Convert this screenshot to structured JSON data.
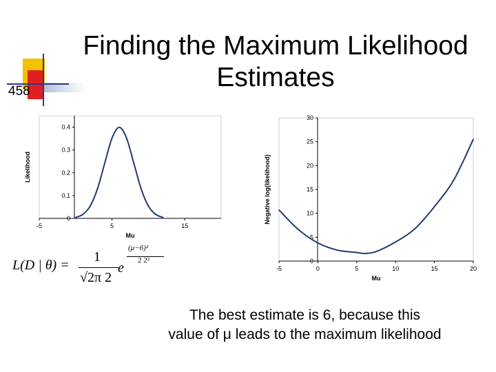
{
  "slide": {
    "number": "458",
    "title_line1": "Finding the Maximum Likelihood",
    "title_line2": "Estimates",
    "caption_line1": "The best estimate is 6, because this",
    "caption_line2": "value of μ leads to the maximum likelihood"
  },
  "formula": {
    "lhs": "L(D | θ) = ",
    "numerator": "1",
    "denominator": "√2π 2",
    "base": "e",
    "exp_numerator": "(μ−6)²",
    "exp_denominator": "2 2²"
  },
  "colors": {
    "curve": "#1f3a6e",
    "grid": "#cfcfcf",
    "title_deco_yellow": "#f2c200",
    "title_deco_red": "#e02020"
  },
  "chart_data": [
    {
      "type": "line",
      "title": "",
      "xlabel": "Mu",
      "ylabel": "Likelihood",
      "xlim": [
        -5,
        20
      ],
      "ylim": [
        0,
        0.45
      ],
      "x_ticks": [
        "-5",
        "5",
        "15"
      ],
      "y_ticks": [
        "0",
        "0.1",
        "0.2",
        "0.3",
        "0.4"
      ],
      "x_tick_values": [
        -5,
        5,
        15
      ],
      "y_tick_values": [
        0,
        0.1,
        0.2,
        0.3,
        0.4
      ],
      "x": [
        0,
        1,
        2,
        3,
        4,
        5,
        6,
        7,
        8,
        9,
        10,
        11,
        12
      ],
      "y": [
        0.0044,
        0.0175,
        0.054,
        0.1295,
        0.242,
        0.352,
        0.399,
        0.352,
        0.242,
        0.1295,
        0.054,
        0.0175,
        0.0044
      ]
    },
    {
      "type": "line",
      "title": "",
      "xlabel": "Mu",
      "ylabel": "Negative log(likelihood)",
      "xlim": [
        -5,
        20
      ],
      "ylim": [
        0,
        30
      ],
      "x_ticks": [
        "-5",
        "0",
        "5",
        "10",
        "15",
        "20"
      ],
      "y_ticks": [
        "0",
        "5",
        "10",
        "15",
        "20",
        "25",
        "30"
      ],
      "x_tick_values": [
        -5,
        0,
        5,
        10,
        15,
        20
      ],
      "y_tick_values": [
        0,
        5,
        10,
        15,
        20,
        25,
        30
      ],
      "x": [
        -5,
        -2.5,
        0,
        2.5,
        5,
        6,
        7.5,
        10,
        12.5,
        15,
        17.5,
        20
      ],
      "y": [
        10.7,
        6.6,
        3.8,
        2.3,
        1.8,
        1.6,
        2.0,
        4.0,
        6.8,
        11.4,
        17.0,
        25.5
      ]
    }
  ]
}
